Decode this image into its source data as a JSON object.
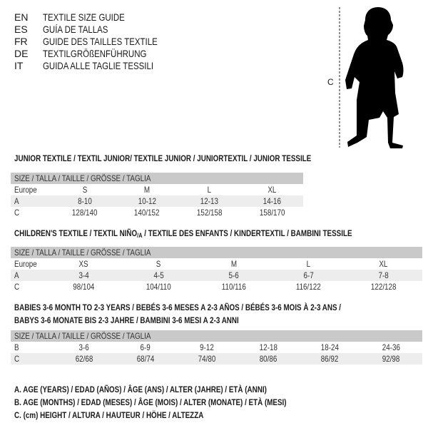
{
  "languages": [
    {
      "code": "EN",
      "text": "TEXTILE SIZE GUIDE"
    },
    {
      "code": "ES",
      "text": "GUÍA DE TALLAS"
    },
    {
      "code": "FR",
      "text": "GUIDE DES TAILLES TEXTILE"
    },
    {
      "code": "DE",
      "text": "TEXTILGRÖßENFÜHRUNG"
    },
    {
      "code": "IT",
      "text": "GUIDA ALLE TAGLIE TESSILI"
    }
  ],
  "figure": {
    "measure_label": "C",
    "icon": "child-silhouette-icon"
  },
  "junior": {
    "title": "JUNIOR TEXTILE / TEXTIL JUNIOR/ TEXTILE JUNIOR / JUNIORTEXTIL / JUNIOR TESSILE",
    "header": "SIZE / TALLA / TAILLE / GRÖSSE / TAGLIA",
    "rows": [
      {
        "label": "Europe",
        "values": [
          "S",
          "M",
          "L",
          "XL"
        ]
      },
      {
        "label": "A",
        "values": [
          "8-10",
          "10-12",
          "12-13",
          "14-16"
        ]
      },
      {
        "label": "C",
        "values": [
          "128/140",
          "140/152",
          "152/158",
          "158/170"
        ]
      }
    ]
  },
  "children": {
    "title_main": "CHILDREN'S TEXTILE / TEXTIL NIÑO",
    "title_sub": "/A",
    "title_rest": " / TEXTILE DES ENFANTS / KINDERTEXTIL / BAMBINI TESSILE",
    "header": "SIZE / TALLA / TAILLE / GRÖSSE / TAGLIA",
    "rows": [
      {
        "label": "Europe",
        "values": [
          "XS",
          "S",
          "M",
          "L",
          "XL"
        ]
      },
      {
        "label": "A",
        "values": [
          "3-4",
          "4-5",
          "5-6",
          "6-7",
          "7-8"
        ]
      },
      {
        "label": "C",
        "values": [
          "98/104",
          "104/110",
          "110/116",
          "116/122",
          "122/128"
        ]
      }
    ]
  },
  "babies": {
    "title_line1": "BABIES 3-6 MONTH TO 2-3 YEARS / BEBÉS 3-6 MESES A 2-3 AÑOS / BÉBÉS 3-6 MOIS À 2-3 ANS /",
    "title_line2": "BABYS 3-6 MONATE BIS 2-3 JAHRE / BAMBINI 3-6 MESI A 2-3 ANNI",
    "header": "SIZE / TALLA / TAILLE / GRÖSSE / TAGLIA",
    "rows": [
      {
        "label": "B",
        "values": [
          "3-6",
          "6-9",
          "9-12",
          "12-18",
          "18-24",
          "24-36"
        ]
      },
      {
        "label": "C",
        "values": [
          "62/68",
          "68/74",
          "74/80",
          "80/86",
          "86/92",
          "92/98"
        ]
      }
    ]
  },
  "legend": [
    "A. AGE (YEARS) / EDAD (AÑOS) / ÂGE (ANS) / ALTER (JAHRE) / ETÀ (ANNI)",
    "B. AGE (MONTHS) / EDAD (MESES) / ÂGE (MOIS) / ALTER (MONATE) / ETÀ (MESI)",
    "C. (cm) HEIGHT / ALTURA / HAUTEUR / HÖHE / ALTEZZA"
  ]
}
